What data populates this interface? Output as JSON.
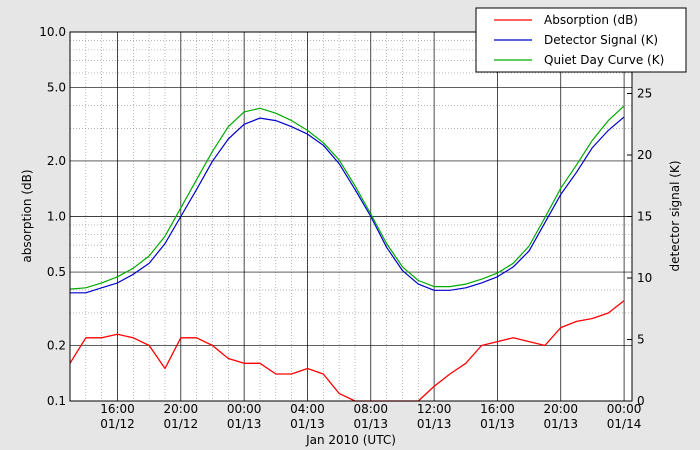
{
  "chart_data": {
    "type": "line",
    "title": "",
    "xlabel": "Jan 2010 (UTC)",
    "ylabel_left": "absorption (dB)",
    "ylabel_right": "detector signal (K)",
    "x_range": [
      "2010-01-12T13:00",
      "2010-01-14T00:30"
    ],
    "x_ticks": [
      {
        "time": "16:00",
        "date": "01/12",
        "t": "2010-01-12T16:00"
      },
      {
        "time": "20:00",
        "date": "01/12",
        "t": "2010-01-12T20:00"
      },
      {
        "time": "00:00",
        "date": "01/13",
        "t": "2010-01-13T00:00"
      },
      {
        "time": "04:00",
        "date": "01/13",
        "t": "2010-01-13T04:00"
      },
      {
        "time": "08:00",
        "date": "01/13",
        "t": "2010-01-13T08:00"
      },
      {
        "time": "12:00",
        "date": "01/13",
        "t": "2010-01-13T12:00"
      },
      {
        "time": "16:00",
        "date": "01/13",
        "t": "2010-01-13T16:00"
      },
      {
        "time": "20:00",
        "date": "01/13",
        "t": "2010-01-13T20:00"
      },
      {
        "time": "00:00",
        "date": "01/14",
        "t": "2010-01-14T00:00"
      }
    ],
    "y_left": {
      "scale": "log",
      "range": [
        0.1,
        10.0
      ],
      "ticks": [
        "10.0",
        "5.0",
        "2.0",
        "1.0",
        "0.5",
        "0.2",
        "0.1"
      ]
    },
    "y_right": {
      "scale": "linear",
      "range": [
        0,
        30
      ],
      "ticks": [
        "0",
        "5",
        "10",
        "15",
        "20",
        "25"
      ]
    },
    "grid": true,
    "legend_position": "top-right",
    "series": [
      {
        "name": "Absorption (dB)",
        "axis": "left",
        "color": "#ff0000",
        "x": [
          "2010-01-12T13:00",
          "2010-01-12T14:00",
          "2010-01-12T15:00",
          "2010-01-12T16:00",
          "2010-01-12T17:00",
          "2010-01-12T18:00",
          "2010-01-12T19:00",
          "2010-01-12T20:00",
          "2010-01-12T21:00",
          "2010-01-12T22:00",
          "2010-01-12T23:00",
          "2010-01-13T00:00",
          "2010-01-13T01:00",
          "2010-01-13T02:00",
          "2010-01-13T03:00",
          "2010-01-13T04:00",
          "2010-01-13T05:00",
          "2010-01-13T06:00",
          "2010-01-13T07:00",
          "2010-01-13T08:00",
          "2010-01-13T09:00",
          "2010-01-13T10:00",
          "2010-01-13T11:00",
          "2010-01-13T12:00",
          "2010-01-13T13:00",
          "2010-01-13T14:00",
          "2010-01-13T15:00",
          "2010-01-13T16:00",
          "2010-01-13T17:00",
          "2010-01-13T18:00",
          "2010-01-13T19:00",
          "2010-01-13T20:00",
          "2010-01-13T21:00",
          "2010-01-13T22:00",
          "2010-01-13T23:00",
          "2010-01-14T00:00"
        ],
        "y": [
          0.16,
          0.22,
          0.22,
          0.23,
          0.22,
          0.2,
          0.15,
          0.22,
          0.22,
          0.2,
          0.17,
          0.16,
          0.16,
          0.14,
          0.14,
          0.15,
          0.14,
          0.11,
          0.1,
          0.1,
          0.1,
          0.1,
          0.1,
          0.12,
          0.14,
          0.16,
          0.2,
          0.21,
          0.22,
          0.21,
          0.2,
          0.25,
          0.27,
          0.28,
          0.3,
          0.35
        ]
      },
      {
        "name": "Detector Signal (K)",
        "axis": "right",
        "color": "#0000cc",
        "x": [
          "2010-01-12T13:00",
          "2010-01-12T14:00",
          "2010-01-12T15:00",
          "2010-01-12T16:00",
          "2010-01-12T17:00",
          "2010-01-12T18:00",
          "2010-01-12T19:00",
          "2010-01-12T20:00",
          "2010-01-12T21:00",
          "2010-01-12T22:00",
          "2010-01-12T23:00",
          "2010-01-13T00:00",
          "2010-01-13T01:00",
          "2010-01-13T02:00",
          "2010-01-13T03:00",
          "2010-01-13T04:00",
          "2010-01-13T05:00",
          "2010-01-13T06:00",
          "2010-01-13T07:00",
          "2010-01-13T08:00",
          "2010-01-13T09:00",
          "2010-01-13T10:00",
          "2010-01-13T11:00",
          "2010-01-13T12:00",
          "2010-01-13T13:00",
          "2010-01-13T14:00",
          "2010-01-13T15:00",
          "2010-01-13T16:00",
          "2010-01-13T17:00",
          "2010-01-13T18:00",
          "2010-01-13T19:00",
          "2010-01-13T20:00",
          "2010-01-13T21:00",
          "2010-01-13T22:00",
          "2010-01-13T23:00",
          "2010-01-14T00:00"
        ],
        "y": [
          8.8,
          8.8,
          9.2,
          9.6,
          10.3,
          11.2,
          12.8,
          15.0,
          17.2,
          19.5,
          21.3,
          22.5,
          23.0,
          22.8,
          22.3,
          21.7,
          20.8,
          19.3,
          17.2,
          15.0,
          12.5,
          10.6,
          9.5,
          9.0,
          9.0,
          9.2,
          9.6,
          10.1,
          10.9,
          12.2,
          14.5,
          16.8,
          18.6,
          20.6,
          22.0,
          23.1
        ]
      },
      {
        "name": "Quiet Day Curve (K)",
        "axis": "right",
        "color": "#00aa00",
        "x": [
          "2010-01-12T13:00",
          "2010-01-12T14:00",
          "2010-01-12T15:00",
          "2010-01-12T16:00",
          "2010-01-12T17:00",
          "2010-01-12T18:00",
          "2010-01-12T19:00",
          "2010-01-12T20:00",
          "2010-01-12T21:00",
          "2010-01-12T22:00",
          "2010-01-12T23:00",
          "2010-01-13T00:00",
          "2010-01-13T01:00",
          "2010-01-13T02:00",
          "2010-01-13T03:00",
          "2010-01-13T04:00",
          "2010-01-13T05:00",
          "2010-01-13T06:00",
          "2010-01-13T07:00",
          "2010-01-13T08:00",
          "2010-01-13T09:00",
          "2010-01-13T10:00",
          "2010-01-13T11:00",
          "2010-01-13T12:00",
          "2010-01-13T13:00",
          "2010-01-13T14:00",
          "2010-01-13T15:00",
          "2010-01-13T16:00",
          "2010-01-13T17:00",
          "2010-01-13T18:00",
          "2010-01-13T19:00",
          "2010-01-13T20:00",
          "2010-01-13T21:00",
          "2010-01-13T22:00",
          "2010-01-13T23:00",
          "2010-01-14T00:00"
        ],
        "y": [
          9.1,
          9.2,
          9.6,
          10.1,
          10.8,
          11.8,
          13.4,
          15.7,
          18.0,
          20.3,
          22.3,
          23.5,
          23.8,
          23.4,
          22.8,
          22.0,
          21.0,
          19.6,
          17.5,
          15.2,
          12.8,
          10.9,
          9.8,
          9.3,
          9.3,
          9.5,
          9.9,
          10.4,
          11.2,
          12.6,
          14.9,
          17.3,
          19.2,
          21.2,
          22.8,
          24.0
        ]
      }
    ]
  }
}
